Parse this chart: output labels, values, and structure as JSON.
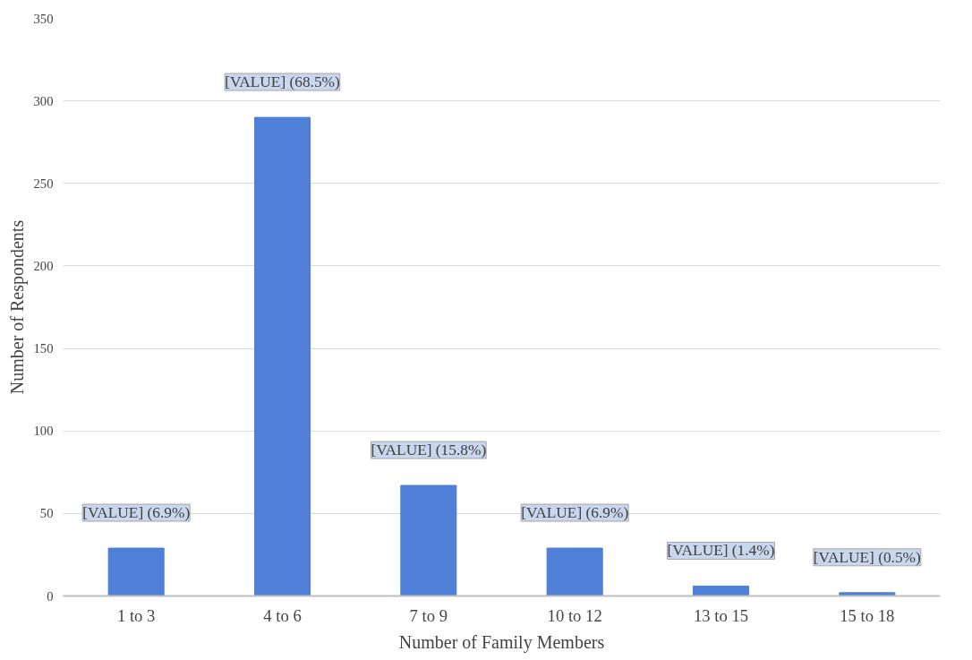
{
  "chart_data": {
    "type": "bar",
    "xlabel": "Number of Family Members",
    "ylabel": "Number of Respondents",
    "categories": [
      "1 to 3",
      "4 to 6",
      "7 to 9",
      "10 to 12",
      "13 to 15",
      "15 to 18"
    ],
    "values": [
      29,
      290,
      67,
      29,
      6,
      2
    ],
    "annotations": [
      {
        "text": "[VALUE] (6.9%)",
        "x": "1 to 3",
        "y": 29
      },
      {
        "text": "[VALUE] (68.5%)",
        "x": "4 to 6",
        "y": 290
      },
      {
        "text": "[VALUE] (15.8%)",
        "x": "7 to 9",
        "y": 67
      },
      {
        "text": "[VALUE] (6.9%)",
        "x": "10 to 12",
        "y": 29
      },
      {
        "text": "[VALUE] (1.4%)",
        "x": "13 to 15",
        "y": 6
      },
      {
        "text": "[VALUE] (0.5%)",
        "x": "15 to 18",
        "y": 2
      }
    ],
    "color": "#4f7fd6",
    "ylim": [
      0,
      350
    ],
    "yticks": [
      0,
      50,
      100,
      150,
      200,
      250,
      300,
      350
    ],
    "grid": "y"
  }
}
